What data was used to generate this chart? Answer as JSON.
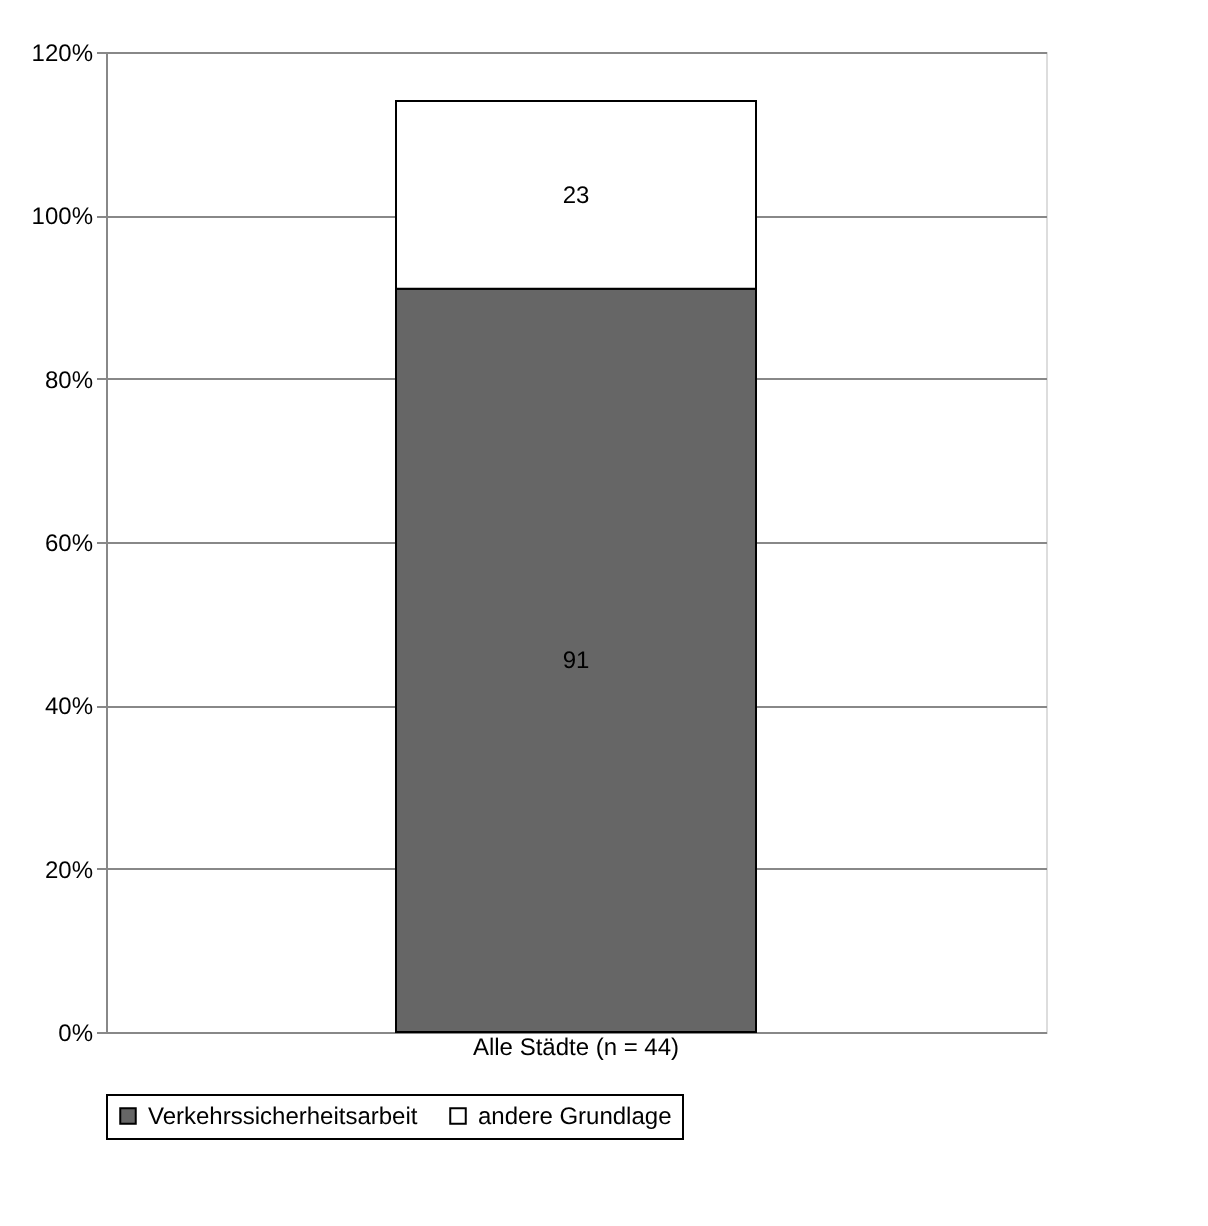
{
  "chart_data": {
    "type": "bar",
    "stacked": true,
    "categories": [
      "Alle Städte (n = 44)"
    ],
    "series": [
      {
        "name": "Verkehrssicherheitsarbeit",
        "color": "#666666",
        "values": [
          91
        ]
      },
      {
        "name": "andere Grundlage",
        "color": "#ffffff",
        "values": [
          23
        ]
      }
    ],
    "data_labels": true,
    "ylim": [
      0,
      120
    ],
    "yticks": [
      {
        "value": 0,
        "label": "0%"
      },
      {
        "value": 20,
        "label": "20%"
      },
      {
        "value": 40,
        "label": "40%"
      },
      {
        "value": 60,
        "label": "60%"
      },
      {
        "value": 80,
        "label": "80%"
      },
      {
        "value": 100,
        "label": "100%"
      },
      {
        "value": 120,
        "label": "120%"
      }
    ],
    "grid": "y",
    "legend": "bottom"
  }
}
